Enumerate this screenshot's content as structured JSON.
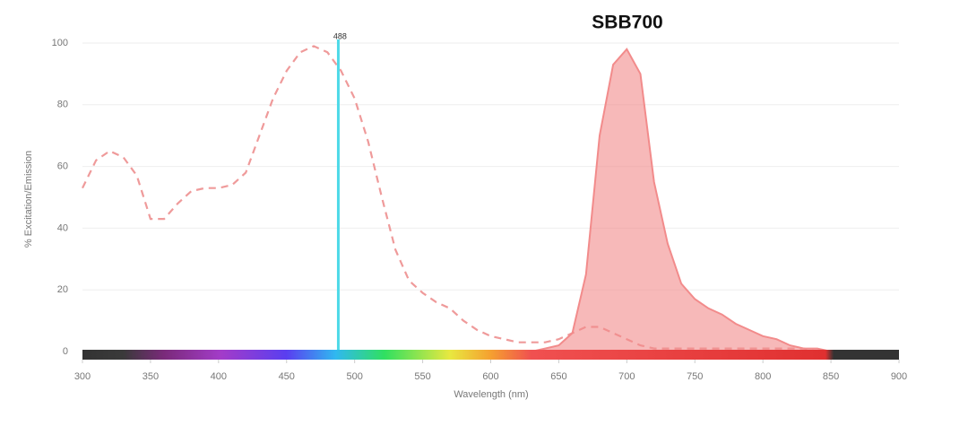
{
  "chart_data": {
    "type": "line",
    "title": "SBB700",
    "x_label": "Wavelength (nm)",
    "y_label": "% Excitation/Emission",
    "annotation": 488,
    "x": [
      300,
      310,
      320,
      330,
      340,
      350,
      360,
      370,
      380,
      390,
      400,
      410,
      420,
      430,
      440,
      450,
      460,
      470,
      480,
      490,
      500,
      510,
      520,
      530,
      540,
      550,
      560,
      570,
      580,
      590,
      600,
      610,
      620,
      630,
      640,
      650,
      660,
      670,
      680,
      690,
      700,
      710,
      720,
      730,
      740,
      750,
      760,
      770,
      780,
      790,
      800,
      810,
      820,
      830,
      840,
      850
    ],
    "series": [
      {
        "color": "#ef9a9a",
        "dashed": true,
        "fill": false,
        "values": [
          53,
          62,
          65,
          63,
          57,
          43,
          43,
          48,
          52,
          53,
          53,
          54,
          58,
          70,
          82,
          91,
          97,
          99,
          97,
          91,
          82,
          68,
          50,
          33,
          23,
          19,
          16,
          14,
          10,
          7,
          5,
          4,
          3,
          3,
          3,
          4,
          6,
          8,
          8,
          6,
          4,
          2,
          1,
          1,
          1,
          1,
          1,
          1,
          1,
          1,
          1,
          1,
          1,
          1,
          0,
          0
        ]
      },
      {
        "color": "#f28b8b",
        "dashed": false,
        "fill": true,
        "values": [
          0,
          0,
          0,
          0,
          0,
          0,
          0,
          0,
          0,
          0,
          0,
          0,
          0,
          0,
          0,
          0,
          0,
          0,
          0,
          0,
          0,
          0,
          0,
          0,
          0,
          0,
          0,
          0,
          0,
          0,
          0,
          0,
          0,
          0,
          1,
          2,
          6,
          25,
          70,
          93,
          98,
          90,
          55,
          35,
          22,
          17,
          14,
          12,
          9,
          7,
          5,
          4,
          2,
          1,
          1,
          0
        ]
      }
    ],
    "laser_color": "#4dd9e8",
    "xlim": [
      300,
      900
    ],
    "xticks": [
      300,
      350,
      400,
      450,
      500,
      550,
      600,
      650,
      700,
      750,
      800,
      850,
      900
    ],
    "ylim": [
      0,
      100
    ],
    "yticks": [
      0,
      20,
      40,
      60,
      80,
      100
    ],
    "grid": true
  }
}
